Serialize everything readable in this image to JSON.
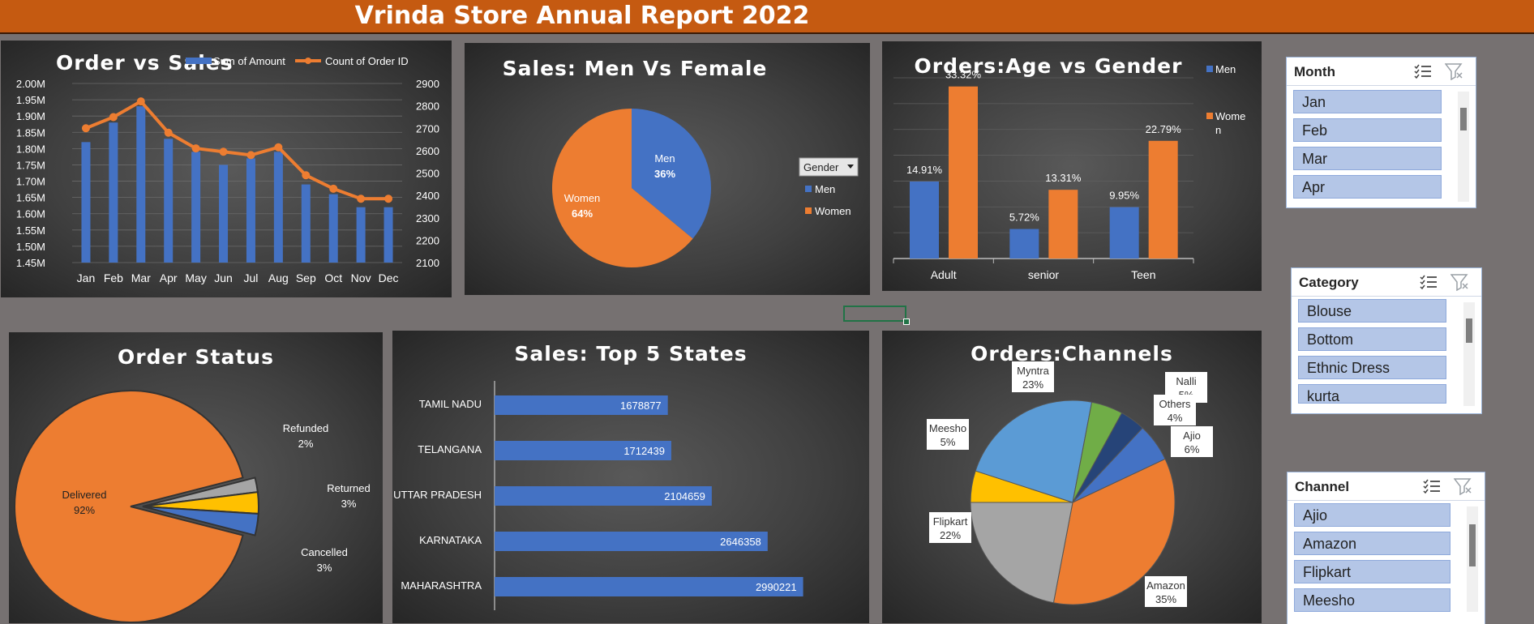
{
  "report_title": "Vrinda Store Annual Report 2022",
  "colors": {
    "blue": "#4472c4",
    "orange": "#ed7d31",
    "gray": "#a5a5a5",
    "yellow": "#ffc000",
    "green": "#70ad47",
    "lightblue": "#5b9bd5",
    "navy": "#264478",
    "banner": "#c55a11"
  },
  "chart_data": [
    {
      "id": "order_vs_sales",
      "type": "bar",
      "title": "Order vs Sales",
      "categories": [
        "Jan",
        "Feb",
        "Mar",
        "Apr",
        "May",
        "Jun",
        "Jul",
        "Aug",
        "Sep",
        "Oct",
        "Nov",
        "Dec"
      ],
      "series": [
        {
          "name": "Sum of Amount",
          "type": "bar",
          "axis": "left",
          "values": [
            1.82,
            1.88,
            1.93,
            1.83,
            1.79,
            1.75,
            1.77,
            1.79,
            1.69,
            1.66,
            1.62,
            1.62
          ]
        },
        {
          "name": "Count of Order ID",
          "type": "line",
          "axis": "right",
          "values": [
            2700,
            2750,
            2820,
            2680,
            2610,
            2595,
            2580,
            2615,
            2490,
            2430,
            2385,
            2385
          ]
        }
      ],
      "left_ticks": [
        "2.00M",
        "1.95M",
        "1.90M",
        "1.85M",
        "1.80M",
        "1.75M",
        "1.70M",
        "1.65M",
        "1.60M",
        "1.55M",
        "1.50M",
        "1.45M"
      ],
      "right_ticks": [
        "2900",
        "2800",
        "2700",
        "2600",
        "2500",
        "2400",
        "2300",
        "2200",
        "2100"
      ],
      "ylim_left": [
        1.45,
        2.0
      ],
      "ylim_right": [
        2100,
        2900
      ],
      "legend": "top"
    },
    {
      "id": "sales_gender",
      "type": "pie",
      "title": "Sales: Men Vs Female",
      "labels": [
        "Men",
        "Women"
      ],
      "values": [
        36,
        64
      ],
      "value_labels": [
        "36%",
        "64%"
      ],
      "legend_header": "Gender",
      "legend": "right"
    },
    {
      "id": "age_gender",
      "type": "bar",
      "title": "Orders:Age vs Gender",
      "categories": [
        "Adult",
        "senior",
        "Teen"
      ],
      "series": [
        {
          "name": "Men",
          "values": [
            14.91,
            5.72,
            9.95
          ],
          "labels": [
            "14.91%",
            "5.72%",
            "9.95%"
          ]
        },
        {
          "name": "Women",
          "values": [
            33.32,
            13.31,
            22.79
          ],
          "labels": [
            "33.32%",
            "13.31%",
            "22.79%"
          ]
        }
      ],
      "legend_women_lines": [
        "Wome",
        "n"
      ],
      "legend": "right"
    },
    {
      "id": "order_status",
      "type": "pie",
      "title": "Order Status",
      "labels": [
        "Delivered",
        "Refunded",
        "Returned",
        "Cancelled"
      ],
      "values": [
        92,
        2,
        3,
        3
      ],
      "value_labels": [
        "92%",
        "2%",
        "3%",
        "3%"
      ]
    },
    {
      "id": "top_states",
      "type": "bar",
      "orientation": "horizontal",
      "title": "Sales: Top 5  States",
      "categories": [
        "TAMIL NADU",
        "TELANGANA",
        "UTTAR PRADESH",
        "KARNATAKA",
        "MAHARASHTRA"
      ],
      "values": [
        1678877,
        1712439,
        2104659,
        2646358,
        2990221
      ],
      "value_labels": [
        "1678877",
        "1712439",
        "2104659",
        "2646358",
        "2990221"
      ]
    },
    {
      "id": "channels",
      "type": "pie",
      "title": "Orders:Channels",
      "labels": [
        "Amazon",
        "Flipkart",
        "Meesho",
        "Myntra",
        "Nalli",
        "Others",
        "Ajio"
      ],
      "values": [
        35,
        22,
        5,
        23,
        5,
        4,
        6
      ],
      "value_labels": [
        "35%",
        "22%",
        "5%",
        "23%",
        "5%",
        "4%",
        "6%"
      ]
    }
  ],
  "slicers": {
    "month": {
      "title": "Month",
      "items": [
        "Jan",
        "Feb",
        "Mar",
        "Apr"
      ]
    },
    "category": {
      "title": "Category",
      "items": [
        "Blouse",
        "Bottom",
        "Ethnic Dress",
        "kurta"
      ]
    },
    "channel": {
      "title": "Channel",
      "items": [
        "Ajio",
        "Amazon",
        "Flipkart",
        "Meesho"
      ]
    }
  }
}
